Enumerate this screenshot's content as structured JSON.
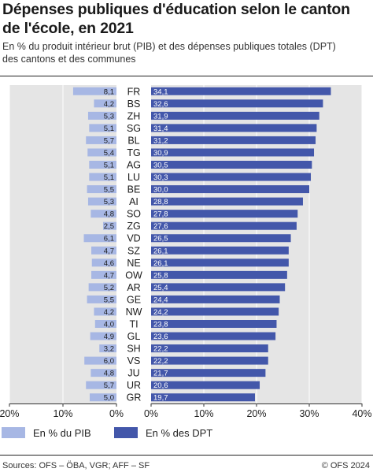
{
  "title_lines": [
    "Dépenses publiques d'éducation selon le canton",
    "de l'école, en 2021"
  ],
  "subtitle_lines": [
    "En % du produit intérieur brut (PIB) et des dépenses publiques totales (DPT)",
    "des cantons et des communes"
  ],
  "colors": {
    "pib": "#a7b7e4",
    "dpt": "#4357aa",
    "panel_bg": "#e5e5e5",
    "grid": "#ffffff",
    "axis": "#333333"
  },
  "legend": {
    "pib_label": "En % du PIB",
    "dpt_label": "En % des DPT"
  },
  "footer": {
    "source": "Sources: OFS – ÖBA, VGR; AFF – SF",
    "copyright": "© OFS 2024"
  },
  "chart_data": {
    "type": "bar",
    "orientation": "horizontal",
    "categories": [
      "FR",
      "BS",
      "ZH",
      "SG",
      "BL",
      "TG",
      "AG",
      "LU",
      "BE",
      "AI",
      "SO",
      "ZG",
      "VD",
      "SZ",
      "NE",
      "OW",
      "AR",
      "GE",
      "NW",
      "TI",
      "GL",
      "SH",
      "VS",
      "JU",
      "UR",
      "GR"
    ],
    "series": [
      {
        "name": "En % du PIB",
        "values": [
          8.1,
          4.2,
          5.3,
          5.1,
          5.7,
          5.4,
          5.1,
          5.1,
          5.5,
          5.3,
          4.8,
          2.5,
          6.1,
          4.7,
          4.6,
          4.7,
          5.2,
          5.5,
          4.2,
          4.0,
          4.9,
          3.2,
          6.0,
          4.8,
          5.7,
          5.0
        ],
        "labels": [
          "8,1",
          "4,2",
          "5,3",
          "5,1",
          "5,7",
          "5,4",
          "5,1",
          "5,1",
          "5,5",
          "5,3",
          "4,8",
          "2,5",
          "6,1",
          "4,7",
          "4,6",
          "4,7",
          "5,2",
          "5,5",
          "4,2",
          "4,0",
          "4,9",
          "3,2",
          "6,0",
          "4,8",
          "5,7",
          "5,0"
        ],
        "xlim": [
          20,
          0
        ],
        "ticks": [
          "20%",
          "10%",
          "0%"
        ]
      },
      {
        "name": "En % des DPT",
        "values": [
          34.1,
          32.6,
          31.9,
          31.4,
          31.2,
          30.9,
          30.5,
          30.3,
          30.0,
          28.8,
          27.8,
          27.6,
          26.5,
          26.1,
          26.1,
          25.8,
          25.4,
          24.4,
          24.2,
          23.8,
          23.6,
          22.2,
          22.2,
          21.7,
          20.6,
          19.7
        ],
        "labels": [
          "34,1",
          "32,6",
          "31,9",
          "31,4",
          "31,2",
          "30,9",
          "30,5",
          "30,3",
          "30,0",
          "28,8",
          "27,8",
          "27,6",
          "26,5",
          "26,1",
          "26,1",
          "25,8",
          "25,4",
          "24,4",
          "24,2",
          "23,8",
          "23,6",
          "22,2",
          "22,2",
          "21,7",
          "20,6",
          "19,7"
        ],
        "xlim": [
          0,
          40
        ],
        "ticks": [
          "0%",
          "10%",
          "20%",
          "30%",
          "40%"
        ]
      }
    ],
    "legend_position": "bottom-left",
    "grid": true
  }
}
